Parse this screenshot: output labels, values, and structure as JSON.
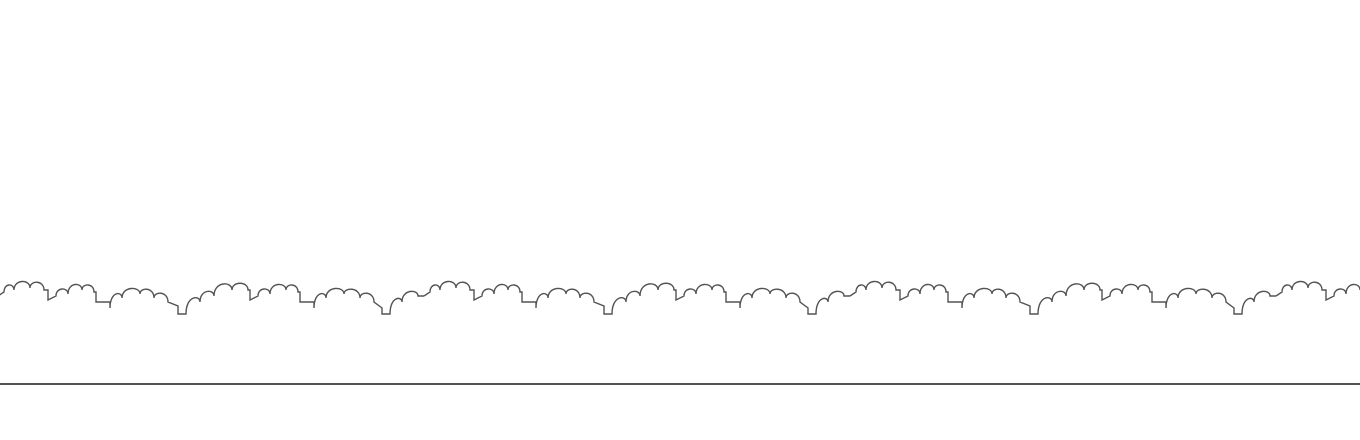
{
  "scene": {
    "background_color": "#ffffff",
    "line_color": "#535353",
    "elements": {
      "ground": "ground-line",
      "background": "bush-skyline"
    }
  }
}
